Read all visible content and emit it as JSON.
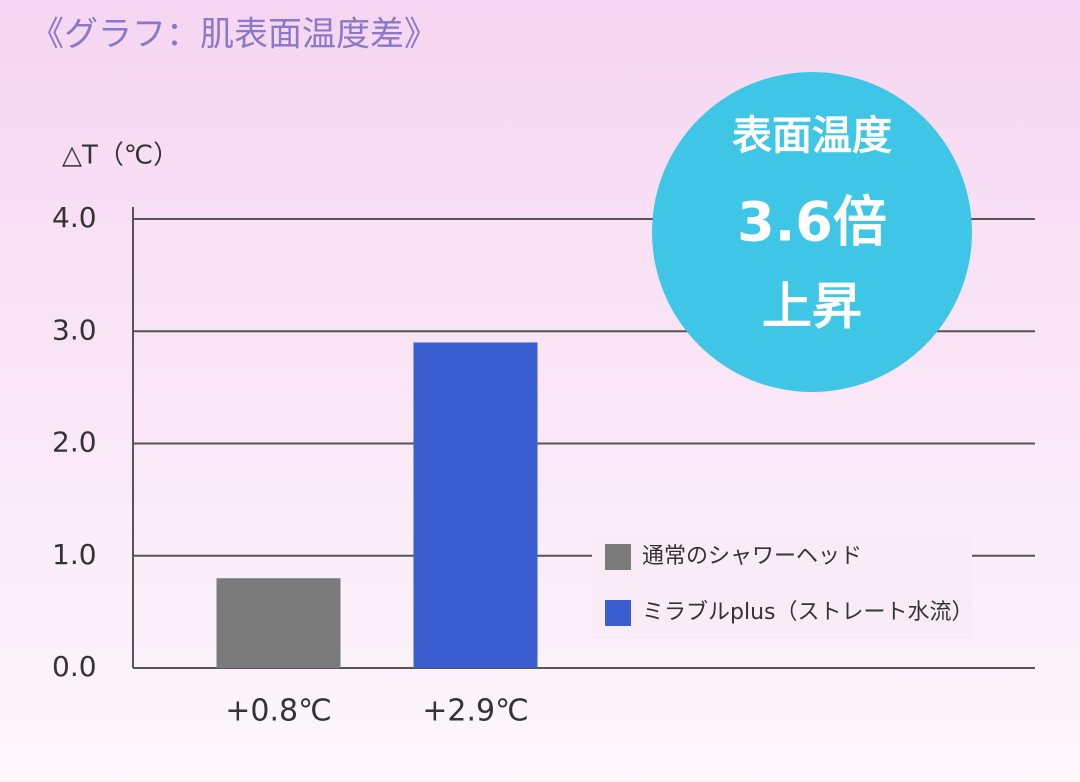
{
  "chart_data": {
    "type": "bar",
    "title": "《グラフ：肌表面温度差》",
    "y_label": "△T（℃）",
    "annotation": [
      "表面温度",
      "3.6倍",
      "上昇"
    ],
    "categories": [
      null,
      null
    ],
    "series": [
      {
        "name": "通常のシャワーヘッド",
        "color": "#7b7b7b",
        "values": [
          0.8,
          null
        ],
        "value_labels": [
          "+0.8℃",
          null
        ]
      },
      {
        "name": "ミラブルplus（ストレート水流）",
        "color": "#3a5ecf",
        "values": [
          null,
          2.9
        ],
        "value_labels": [
          null,
          "+2.9℃"
        ]
      }
    ],
    "ylim": [
      0,
      4
    ],
    "yticks": [
      {
        "value": 0,
        "label": "0.0"
      },
      {
        "value": 1,
        "label": "1.0"
      },
      {
        "value": 2,
        "label": "2.0"
      },
      {
        "value": 3,
        "label": "3.0"
      },
      {
        "value": 4,
        "label": "4.0"
      }
    ],
    "grid": true,
    "legend": "right"
  }
}
